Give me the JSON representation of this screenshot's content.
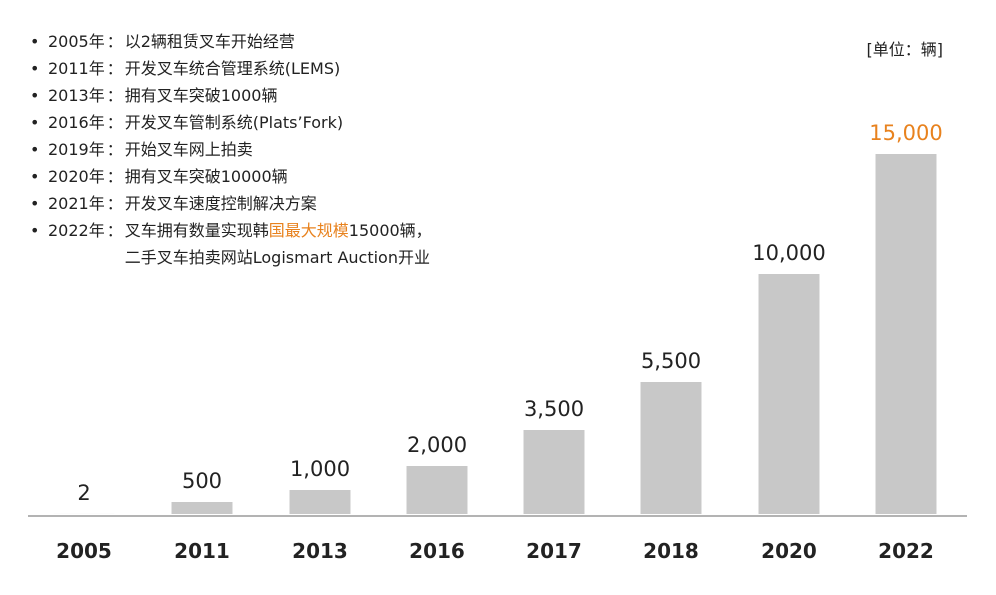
{
  "unit_label": "[单位：辆]",
  "milestones": [
    {
      "year": "2005年",
      "text": "以2辆租赁叉车开始经营"
    },
    {
      "year": "2011年",
      "text": "开发叉车统合管理系统(LEMS)"
    },
    {
      "year": "2013年",
      "text": "拥有叉车突破1000辆"
    },
    {
      "year": "2016年",
      "text": "开发叉车管制系统(Plats’Fork)"
    },
    {
      "year": "2019年",
      "text": "开始叉车网上拍卖"
    },
    {
      "year": "2020年",
      "text": "拥有叉车突破10000辆"
    },
    {
      "year": "2021年",
      "text": "开发叉车速度控制解决方案"
    },
    {
      "year": "2022年",
      "text_before": "叉车拥有数量实现韩",
      "text_highlight": "国最大规模",
      "text_after": "15000辆，",
      "text_line2": "二手叉车拍卖网站Logismart Auction开业"
    }
  ],
  "chart_data": {
    "type": "bar",
    "categories": [
      "2005",
      "2011",
      "2013",
      "2016",
      "2017",
      "2018",
      "2020",
      "2022"
    ],
    "values": [
      2,
      500,
      1000,
      2000,
      3500,
      5500,
      10000,
      15000
    ],
    "value_labels": [
      "2",
      "500",
      "1,000",
      "2,000",
      "3,500",
      "5,500",
      "10,000",
      "15,000"
    ],
    "highlight_index": 7,
    "ylim": [
      0,
      15000
    ],
    "grid": false,
    "colors": {
      "bar": "#c8c8c8",
      "highlight_label": "#e8821e",
      "label": "#222222",
      "axis": "#9a9a9a"
    }
  }
}
